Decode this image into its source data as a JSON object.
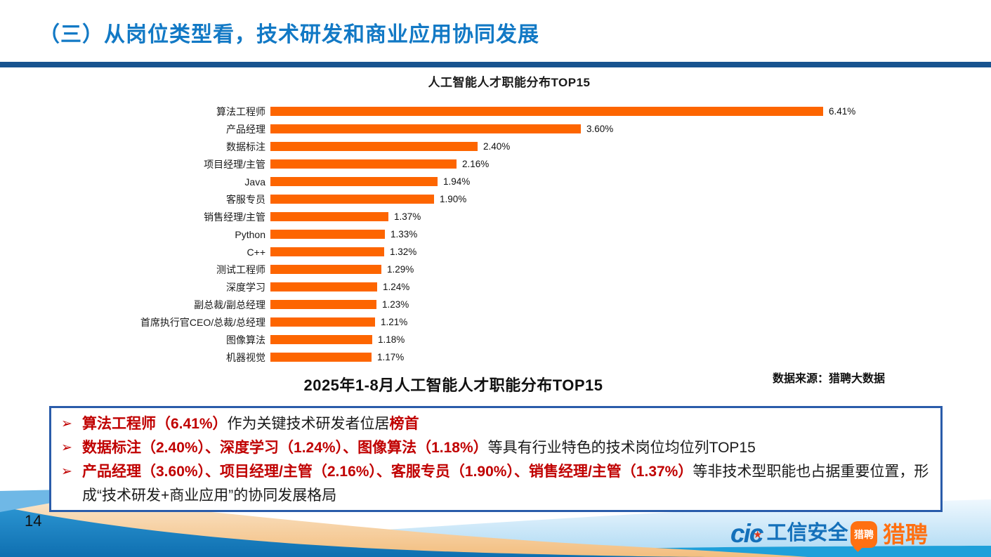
{
  "page": {
    "number": "14"
  },
  "header": {
    "title": "（三）从岗位类型看，技术研发和商业应用协同发展"
  },
  "chart_data": {
    "type": "bar",
    "orientation": "horizontal",
    "title": "人工智能人才职能分布TOP15",
    "categories": [
      "算法工程师",
      "产品经理",
      "数据标注",
      "项目经理/主管",
      "Java",
      "客服专员",
      "销售经理/主管",
      "Python",
      "C++",
      "测试工程师",
      "深度学习",
      "副总裁/副总经理",
      "首席执行官CEO/总裁/总经理",
      "图像算法",
      "机器视觉"
    ],
    "values": [
      6.41,
      3.6,
      2.4,
      2.16,
      1.94,
      1.9,
      1.37,
      1.33,
      1.32,
      1.29,
      1.24,
      1.23,
      1.21,
      1.18,
      1.17
    ],
    "value_labels": [
      "6.41%",
      "3.60%",
      "2.40%",
      "2.16%",
      "1.94%",
      "1.90%",
      "1.37%",
      "1.33%",
      "1.32%",
      "1.29%",
      "1.24%",
      "1.23%",
      "1.21%",
      "1.18%",
      "1.17%"
    ],
    "xlim": [
      0,
      6.8
    ],
    "grid": false,
    "legend": "none",
    "bar_color": "#FD6500"
  },
  "caption": "2025年1-8月人工智能人才职能分布TOP15",
  "source": "数据来源：猎聘大数据",
  "notes": {
    "bullet_char": "➢",
    "items": [
      [
        {
          "t": "算法工程师（6.41%）",
          "c": "red"
        },
        {
          "t": "作为关键技术研发者位居",
          "c": "black"
        },
        {
          "t": "榜首",
          "c": "red"
        }
      ],
      [
        {
          "t": "数据标注（2.40%）、深度学习（1.24%）、图像算法（1.18%）",
          "c": "red"
        },
        {
          "t": "等具有行业特色的技术岗位均位列TOP15",
          "c": "black"
        }
      ],
      [
        {
          "t": "产品经理（3.60%）、项目经理/主管（2.16%）、客服专员（1.90%）、销售经理/主管（1.37%）",
          "c": "red"
        },
        {
          "t": "等非技术型职能也占据重要位置，形成“技术研发+商业应用”的协同发展格局",
          "c": "black"
        }
      ]
    ]
  },
  "footer": {
    "cic_logo_mark": "cic",
    "cic_logo_star": "★",
    "cic_logo_text": "工信安全",
    "liepin_badge_text": "猎聘",
    "liepin_logo_text": "猎聘"
  },
  "colors": {
    "title_blue": "#1279C5",
    "divider_navy": "#17538F",
    "bar_orange": "#FD6500",
    "accent_red": "#C00000",
    "box_border": "#2A5CAA",
    "logo_blue": "#1470BA",
    "logo_orange": "#FF7012",
    "wave_blue": "#1182C4",
    "wave_cyan": "#1FA0DA",
    "wave_orange": "#F3BE7F"
  }
}
